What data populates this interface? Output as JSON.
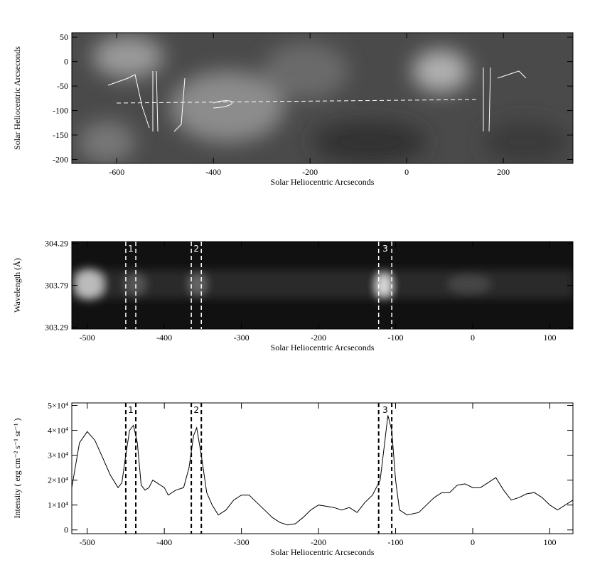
{
  "chart_data": [
    {
      "type": "image",
      "xlabel": "Solar Heliocentric Arcseconds",
      "ylabel": "Solar Heliocentric Arcseconds",
      "xlim": [
        -693,
        344
      ],
      "xticks": [
        -600,
        -400,
        -200,
        0,
        200
      ],
      "ylim": [
        -208,
        59
      ],
      "yticks": [
        50,
        0,
        -50,
        -100,
        -150,
        -200
      ]
    },
    {
      "type": "image",
      "xlabel": "Solar Heliocentric Arcseconds",
      "ylabel": "Wavelength (Å)",
      "xlim": [
        -520,
        130
      ],
      "xticks": [
        -500,
        -400,
        -300,
        -200,
        -100,
        0,
        100
      ],
      "ylim": [
        303.27,
        304.31
      ],
      "yticks": [
        304.29,
        303.79,
        303.29
      ],
      "regions": [
        {
          "label": "1",
          "x": [
            -450,
            -437
          ]
        },
        {
          "label": "2",
          "x": [
            -365,
            -352
          ]
        },
        {
          "label": "3",
          "x": [
            -122,
            -105
          ]
        }
      ]
    },
    {
      "type": "line",
      "xlabel": "Solar Heliocentric Arcseconds",
      "ylabel": "Intensity ( erg cm⁻² s⁻¹ sr⁻¹ )",
      "xlim": [
        -520,
        130
      ],
      "xticks": [
        -500,
        -400,
        -300,
        -200,
        -100,
        0,
        100
      ],
      "ylim": [
        -1500,
        51000
      ],
      "yticks": [
        0,
        {
          "value": 10000,
          "label": "1×10⁴"
        },
        {
          "value": 20000,
          "label": "2×10⁴"
        },
        {
          "value": 30000,
          "label": "3×10⁴"
        },
        {
          "value": 40000,
          "label": "4×10⁴"
        },
        {
          "value": 50000,
          "label": "5×10⁴"
        }
      ],
      "regions": [
        {
          "label": "1",
          "x": [
            -450,
            -437
          ]
        },
        {
          "label": "2",
          "x": [
            -365,
            -352
          ]
        },
        {
          "label": "3",
          "x": [
            -122,
            -105
          ]
        }
      ],
      "color": "#000000",
      "x": [
        -520,
        -510,
        -500,
        -490,
        -480,
        -470,
        -460,
        -455,
        -450,
        -445,
        -440,
        -435,
        -430,
        -425,
        -420,
        -415,
        -410,
        -400,
        -395,
        -385,
        -375,
        -368,
        -362,
        -358,
        -352,
        -345,
        -338,
        -330,
        -320,
        -310,
        -300,
        -290,
        -280,
        -270,
        -260,
        -250,
        -240,
        -230,
        -220,
        -210,
        -200,
        -190,
        -180,
        -170,
        -160,
        -150,
        -140,
        -130,
        -120,
        -115,
        -110,
        -105,
        -100,
        -95,
        -85,
        -70,
        -60,
        -50,
        -40,
        -30,
        -20,
        -10,
        0,
        10,
        20,
        30,
        40,
        50,
        60,
        70,
        80,
        90,
        100,
        110,
        120,
        130
      ],
      "values": [
        17000,
        35000,
        39500,
        36000,
        29000,
        22000,
        17000,
        19000,
        30000,
        40000,
        42000,
        35000,
        18000,
        16000,
        17000,
        20000,
        19000,
        17000,
        14000,
        16000,
        17000,
        25000,
        38000,
        41000,
        30000,
        15000,
        10000,
        6000,
        8000,
        12000,
        14000,
        14000,
        11000,
        8000,
        5000,
        3000,
        2000,
        2500,
        5000,
        8000,
        10000,
        9500,
        9000,
        8000,
        9000,
        7000,
        11000,
        14000,
        20000,
        33000,
        46000,
        40000,
        20000,
        8000,
        6000,
        7000,
        10000,
        13000,
        15000,
        15000,
        18000,
        18500,
        17000,
        17000,
        19000,
        21000,
        16000,
        12000,
        13000,
        14500,
        15000,
        13000,
        10000,
        8000,
        10000,
        12000
      ]
    }
  ]
}
